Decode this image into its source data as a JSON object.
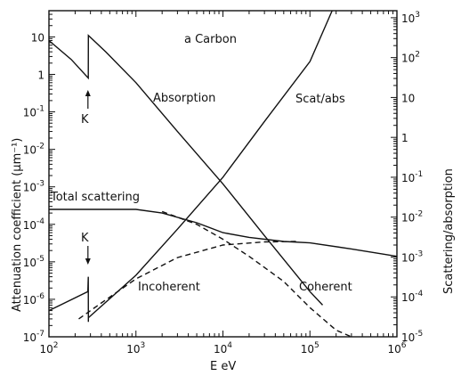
{
  "chart_data": {
    "type": "line",
    "title": "a Carbon",
    "xlabel": "E eV",
    "ylabel": "Attenuation coefficient (μm⁻¹)",
    "y2label": "Scattering/absorption",
    "xscale": "log",
    "yscale": "log",
    "xlim": [
      100,
      1000000
    ],
    "ylim": [
      1e-07,
      50
    ],
    "y2lim": [
      1e-05,
      1500
    ],
    "x_ticks": [
      {
        "base": "10",
        "exp": "2"
      },
      {
        "base": "10",
        "exp": "3"
      },
      {
        "base": "10",
        "exp": "4"
      },
      {
        "base": "10",
        "exp": "5"
      },
      {
        "base": "10",
        "exp": "6"
      }
    ],
    "y_ticks": [
      {
        "base": "10",
        "exp": "",
        "v": 1
      },
      {
        "base": "1",
        "exp": "",
        "v": 0
      },
      {
        "base": "10",
        "exp": "-1",
        "v": -1
      },
      {
        "base": "10",
        "exp": "-2",
        "v": -2
      },
      {
        "base": "10",
        "exp": "-3",
        "v": -3
      },
      {
        "base": "10",
        "exp": "-4",
        "v": -4
      },
      {
        "base": "10",
        "exp": "-5",
        "v": -5
      },
      {
        "base": "10",
        "exp": "-6",
        "v": -6
      },
      {
        "base": "10",
        "exp": "-7",
        "v": -7
      }
    ],
    "y2_ticks": [
      {
        "base": "10",
        "exp": "3",
        "v": 3
      },
      {
        "base": "10",
        "exp": "2",
        "v": 2
      },
      {
        "base": "10",
        "exp": "",
        "v": 1
      },
      {
        "base": "1",
        "exp": "",
        "v": 0
      },
      {
        "base": "10",
        "exp": "-1",
        "v": -1
      },
      {
        "base": "10",
        "exp": "-2",
        "v": -2
      },
      {
        "base": "10",
        "exp": "-3",
        "v": -3
      },
      {
        "base": "10",
        "exp": "-4",
        "v": -4
      },
      {
        "base": "10",
        "exp": "-5",
        "v": -5
      }
    ],
    "series": [
      {
        "name": "Absorption",
        "axis": "left",
        "style": "solid",
        "points": [
          [
            100,
            8
          ],
          [
            180,
            2.5
          ],
          [
            283,
            0.8
          ],
          [
            284,
            11
          ],
          [
            450,
            4
          ],
          [
            1000,
            0.6
          ],
          [
            3000,
            0.03
          ],
          [
            10000,
            0.0012
          ],
          [
            30000,
            5e-05
          ],
          [
            100000,
            1.6e-06
          ],
          [
            140000,
            7e-07
          ]
        ]
      },
      {
        "name": "Scat/abs",
        "axis": "right",
        "style": "solid",
        "points": [
          [
            284,
            3e-05
          ],
          [
            1000,
            0.00035
          ],
          [
            3000,
            0.005
          ],
          [
            10000,
            0.1
          ],
          [
            30000,
            2.5
          ],
          [
            100000,
            80
          ],
          [
            180000,
            1500
          ]
        ]
      },
      {
        "name": "Total scattering",
        "axis": "left",
        "style": "solid",
        "points": [
          [
            100,
            0.00025
          ],
          [
            1000,
            0.00025
          ],
          [
            2000,
            0.0002
          ],
          [
            5000,
            0.00011
          ],
          [
            10000,
            6e-05
          ],
          [
            20000,
            4.5e-05
          ],
          [
            50000,
            3.5e-05
          ],
          [
            100000,
            3.2e-05
          ],
          [
            300000,
            2.2e-05
          ],
          [
            1000000,
            1.4e-05
          ]
        ]
      },
      {
        "name": "Coherent",
        "axis": "left",
        "style": "dashed",
        "points": [
          [
            2000,
            0.00022
          ],
          [
            5000,
            0.0001
          ],
          [
            10000,
            4e-05
          ],
          [
            20000,
            1.4e-05
          ],
          [
            50000,
            3e-06
          ],
          [
            100000,
            6e-07
          ],
          [
            200000,
            1.5e-07
          ],
          [
            300000,
            7e-08
          ]
        ]
      },
      {
        "name": "Incoherent",
        "axis": "left",
        "style": "dashed",
        "points": [
          [
            220,
            3e-07
          ],
          [
            400,
            8e-07
          ],
          [
            1000,
            3.5e-06
          ],
          [
            3000,
            1.3e-05
          ],
          [
            10000,
            2.8e-05
          ],
          [
            30000,
            3.4e-05
          ],
          [
            70000,
            3.5e-05
          ]
        ]
      },
      {
        "name": "",
        "axis": "left",
        "style": "solid",
        "points": [
          [
            100,
            5e-07
          ],
          [
            280,
            1.6e-06
          ],
          [
            283,
            4e-06
          ],
          [
            284,
            2.5e-07
          ]
        ]
      }
    ],
    "labels": {
      "title": "a Carbon",
      "absorption": "Absorption",
      "scat_abs": "Scat/abs",
      "total": "Total scattering",
      "incoherent": "Incoherent",
      "coherent": "Coherent",
      "k_upper": "K",
      "k_lower": "K"
    },
    "k_edge_ev": 284
  }
}
